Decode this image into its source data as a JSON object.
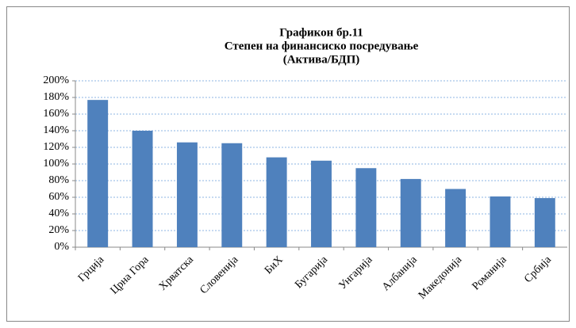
{
  "chart_data": {
    "type": "bar",
    "title": [
      "Графикон бр.11",
      "Степен на финансиско посредување",
      "(Актива/БДП)"
    ],
    "categories": [
      "Грција",
      "Црна Гора",
      "Хрватска",
      "Словенија",
      "БиХ",
      "Бугарија",
      "Унгарија",
      "Албанија",
      "Македонија",
      "Романија",
      "Србија"
    ],
    "values": [
      177,
      140,
      126,
      125,
      108,
      104,
      95,
      82,
      70,
      61,
      59
    ],
    "color": "#4f81bd",
    "ylim": [
      0,
      200
    ],
    "yticks": [
      {
        "value": 0,
        "label": "0%"
      },
      {
        "value": 20,
        "label": "20%"
      },
      {
        "value": 40,
        "label": "40%"
      },
      {
        "value": 60,
        "label": "60%"
      },
      {
        "value": 80,
        "label": "80%"
      },
      {
        "value": 100,
        "label": "100%"
      },
      {
        "value": 120,
        "label": "120%"
      },
      {
        "value": 140,
        "label": "140%"
      },
      {
        "value": 160,
        "label": "160%"
      },
      {
        "value": 180,
        "label": "180%"
      },
      {
        "value": 200,
        "label": "200%"
      }
    ],
    "grid": true
  }
}
